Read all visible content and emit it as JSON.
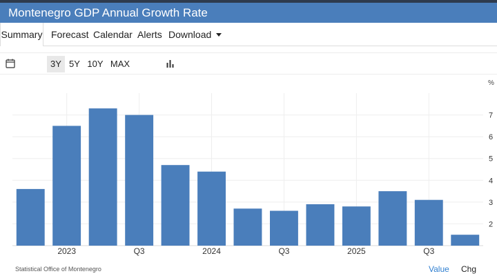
{
  "header": {
    "title": "Montenegro GDP Annual Growth Rate"
  },
  "tabs": [
    {
      "label": "Summary"
    },
    {
      "label": "Forecast"
    },
    {
      "label": "Calendar"
    },
    {
      "label": "Alerts"
    },
    {
      "label": "Download"
    }
  ],
  "toolbar": {
    "ranges": [
      "3Y",
      "5Y",
      "10Y",
      "MAX"
    ],
    "active_range": "3Y"
  },
  "footer": {
    "source": "Statistical Office of Montenegro",
    "value_label": "Value",
    "change_label": "Chg"
  },
  "colors": {
    "bar": "#4a7ebb",
    "header": "#4a7ebb",
    "link": "#2f7fd0"
  },
  "chart_data": {
    "type": "bar",
    "unit": "%",
    "categories": [
      "2022 Q4",
      "2023 Q1",
      "2023 Q2",
      "2023 Q3",
      "2023 Q4",
      "2024 Q1",
      "2024 Q2",
      "2024 Q3",
      "2024 Q4",
      "2025 Q1",
      "2025 Q2",
      "2025 Q3",
      "2025 Q4"
    ],
    "values": [
      3.6,
      6.5,
      7.3,
      7.0,
      4.7,
      4.4,
      2.7,
      2.6,
      2.9,
      2.8,
      3.5,
      3.1,
      1.5
    ],
    "x_tick_labels": [
      {
        "category_index": 1,
        "label": "2023"
      },
      {
        "category_index": 3,
        "label": "Q3"
      },
      {
        "category_index": 5,
        "label": "2024"
      },
      {
        "category_index": 7,
        "label": "Q3"
      },
      {
        "category_index": 9,
        "label": "2025"
      },
      {
        "category_index": 11,
        "label": "Q3"
      }
    ],
    "y_ticks": [
      2,
      3,
      4,
      5,
      6,
      7
    ],
    "ylim": [
      1,
      8
    ],
    "grid": true,
    "legend": "none"
  }
}
